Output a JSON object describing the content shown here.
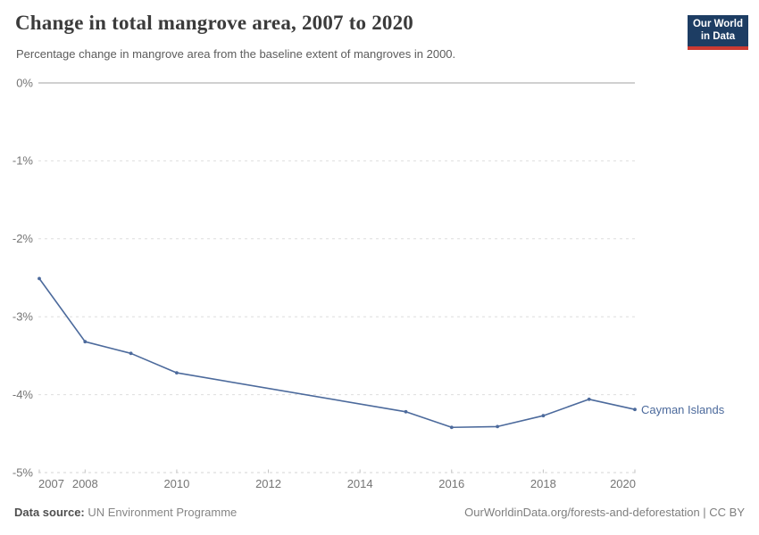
{
  "header": {
    "title": "Change in total mangrove area, 2007 to 2020",
    "subtitle": "Percentage change in mangrove area from the baseline extent of mangroves in 2000.",
    "logo": {
      "line1": "Our World",
      "line2": "in Data"
    }
  },
  "chart_data": {
    "type": "line",
    "title": "Change in total mangrove area, 2007 to 2020",
    "xlabel": "",
    "ylabel": "",
    "xlim": [
      2007,
      2020
    ],
    "ylim": [
      -5,
      0
    ],
    "grid": "horizontal-dashed",
    "legend_position": "end-of-line-label",
    "x_ticks": [
      2007,
      2008,
      2010,
      2012,
      2014,
      2016,
      2018,
      2020
    ],
    "y_ticks": [
      {
        "value": 0,
        "label": "0%"
      },
      {
        "value": -1,
        "label": "-1%"
      },
      {
        "value": -2,
        "label": "-2%"
      },
      {
        "value": -3,
        "label": "-3%"
      },
      {
        "value": -4,
        "label": "-4%"
      },
      {
        "value": -5,
        "label": "-5%"
      }
    ],
    "series": [
      {
        "name": "Cayman Islands",
        "color": "#4C6A9C",
        "points": [
          {
            "year": 2007,
            "value": -2.51
          },
          {
            "year": 2008,
            "value": -3.32
          },
          {
            "year": 2009,
            "value": -3.47
          },
          {
            "year": 2010,
            "value": -3.72
          },
          {
            "year": 2015,
            "value": -4.22
          },
          {
            "year": 2016,
            "value": -4.42
          },
          {
            "year": 2017,
            "value": -4.41
          },
          {
            "year": 2018,
            "value": -4.27
          },
          {
            "year": 2019,
            "value": -4.06
          },
          {
            "year": 2020,
            "value": -4.19
          }
        ]
      }
    ]
  },
  "footer": {
    "source_label": "Data source:",
    "source_value": "UN Environment Programme",
    "credit": "OurWorldinData.org/forests-and-deforestation | CC BY"
  },
  "colors": {
    "line": "#4C6A9C",
    "logo_bg": "#1d3d63",
    "logo_accent": "#cb3a32",
    "zero_line": "#a2a2a2",
    "gridline": "#dedede",
    "axis_text": "#757575"
  }
}
